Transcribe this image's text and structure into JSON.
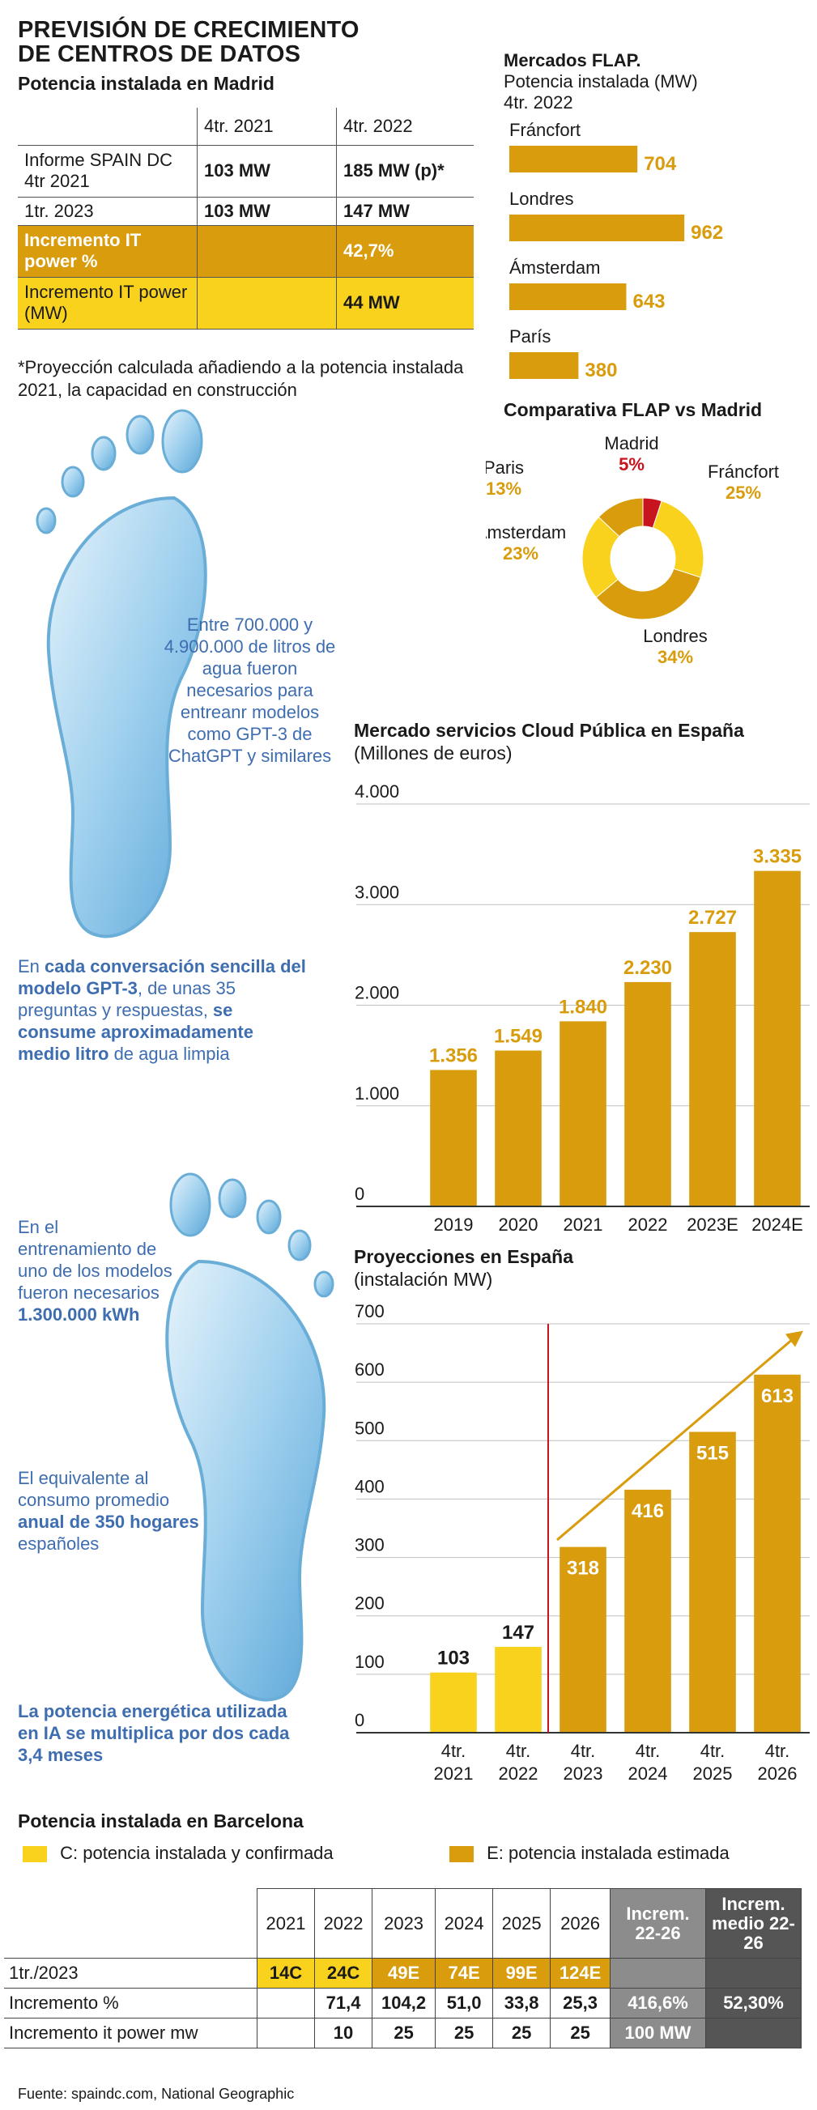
{
  "header": {
    "title_line1": "PREVISIÓN DE CRECIMIENTO",
    "title_line2": "DE CENTROS DE DATOS",
    "subtitle": "Potencia instalada en Madrid"
  },
  "madrid_table": {
    "col1": "4tr. 2021",
    "col2": "4tr. 2022",
    "rows": [
      {
        "label": "Informe SPAIN DC 4tr 2021",
        "v1": "103 MW",
        "v2": "185 MW (p)*"
      },
      {
        "label": "1tr. 2023",
        "v1": "103 MW",
        "v2": "147 MW"
      },
      {
        "label": "Incremento IT power %",
        "v1": "",
        "v2": "42,7%"
      },
      {
        "label": "Incremento IT power (MW)",
        "v1": "",
        "v2": "44 MW"
      }
    ],
    "footnote": "*Proyección calculada añadiendo a la potencia instalada 2021, la capacidad en construcción"
  },
  "colors": {
    "gold": "#d89c0c",
    "yellow": "#f9d21e",
    "red": "#c8141e",
    "grey": "#8c8c8c",
    "dark": "#555555",
    "blue": "#3e6db0"
  },
  "flap_markets": {
    "title": "Mercados FLAP.",
    "subtitle1": "Potencia instalada (MW)",
    "subtitle2": "4tr. 2022"
  },
  "water_text": {
    "p1": "Entre 700.000 y 4.900.000 de litros de agua fueron necesarios para entreanr modelos como GPT-3 de ChatGPT y similares",
    "p2a": "En ",
    "p2b": "cada conversación sencilla del modelo GPT-3",
    "p2c": ", de unas 35 preguntas y respuestas, ",
    "p2d": "se consume aproximadamente medio litro",
    "p2e": " de agua limpia",
    "p3a": "En el entrenamiento de uno de los modelos fueron necesarios ",
    "p3b": "1.300.000 kWh",
    "p4a": "El equivalente al consumo promedio ",
    "p4b": "anual de 350 hogares",
    "p4c": " españoles",
    "p5": "La potencia energética utilizada en IA se multiplica por dos cada 3,4 meses"
  },
  "barcelona": {
    "title": "Potencia instalada en Barcelona",
    "legend_c": "C: potencia instalada y confirmada",
    "legend_e": "E: potencia instalada estimada",
    "headers": [
      "2021",
      "2022",
      "2023",
      "2024",
      "2025",
      "2026",
      "Increm. 22-26",
      "Increm. medio 22-26"
    ],
    "rows": [
      {
        "label": "1tr./2023",
        "cells": [
          "14C",
          "24C",
          "49E",
          "74E",
          "99E",
          "124E",
          "",
          ""
        ]
      },
      {
        "label": "Incremento %",
        "cells": [
          "",
          "71,4",
          "104,2",
          "51,0",
          "33,8",
          "25,3",
          "416,6%",
          "52,30%"
        ]
      },
      {
        "label": "Incremento it power mw",
        "cells": [
          "",
          "10",
          "25",
          "25",
          "25",
          "25",
          "100 MW",
          ""
        ]
      }
    ]
  },
  "source": "Fuente: spaindc.com, National Geographic",
  "chart_data": [
    {
      "type": "bar",
      "title": "Mercados FLAP.",
      "subtitle": "Potencia instalada (MW) 4tr. 2022",
      "categories": [
        "Fráncfort",
        "Londres",
        "Ámsterdam",
        "París"
      ],
      "values": [
        704,
        962,
        643,
        380
      ],
      "value_labels": [
        "704",
        "962",
        "643",
        "380"
      ],
      "orientation": "horizontal"
    },
    {
      "type": "pie",
      "title": "Comparativa FLAP vs Madrid",
      "categories": [
        "Madrid",
        "Fráncfort",
        "Londres",
        "Ámsterdam",
        "Paris"
      ],
      "values": [
        5,
        25,
        34,
        23,
        13
      ],
      "value_labels": [
        "5%",
        "25%",
        "34%",
        "23%",
        "13%"
      ],
      "colors": [
        "#c8141e",
        "#f9d21e",
        "#d89c0c",
        "#f9d21e",
        "#d89c0c"
      ]
    },
    {
      "type": "bar",
      "title": "Mercado servicios Cloud Pública en España",
      "subtitle": "(Millones de euros)",
      "categories": [
        "2019",
        "2020",
        "2021",
        "2022",
        "2023E",
        "2024E"
      ],
      "values": [
        1356,
        1549,
        1840,
        2230,
        2727,
        3335
      ],
      "value_labels": [
        "1.356",
        "1.549",
        "1.840",
        "2.230",
        "2.727",
        "3.335"
      ],
      "yticks": [
        "0",
        "1.000",
        "2.000",
        "3.000",
        "4.000"
      ],
      "ylim": [
        0,
        4000
      ]
    },
    {
      "type": "bar",
      "title": "Proyecciones en España",
      "subtitle": "(instalación MW)",
      "categories": [
        "4tr. 2021",
        "4tr. 2022",
        "4tr. 2023",
        "4tr. 2024",
        "4tr. 2025",
        "4tr. 2026"
      ],
      "values": [
        103,
        147,
        318,
        416,
        515,
        613
      ],
      "value_labels": [
        "103",
        "147",
        "318",
        "416",
        "515",
        "613"
      ],
      "yticks": [
        "0",
        "100",
        "200",
        "300",
        "400",
        "500",
        "600",
        "700"
      ],
      "ylim": [
        0,
        700
      ]
    }
  ]
}
